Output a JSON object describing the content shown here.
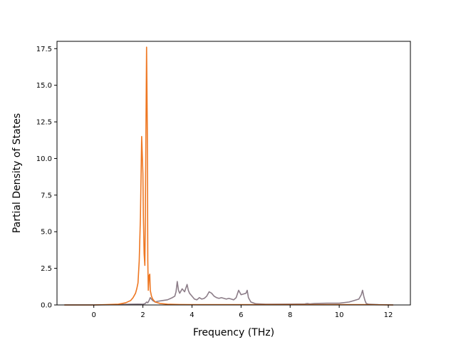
{
  "chart_data": {
    "type": "line",
    "title": "",
    "xlabel": "Frequency (THz)",
    "ylabel": "Partial Density of States",
    "xlim": [
      -1.5,
      12.9
    ],
    "ylim": [
      0,
      18.0
    ],
    "xticks": [
      0,
      2,
      4,
      6,
      8,
      10,
      12
    ],
    "xtick_labels": [
      "0",
      "2",
      "4",
      "6",
      "8",
      "10",
      "12"
    ],
    "yticks": [
      0.0,
      2.5,
      5.0,
      7.5,
      10.0,
      12.5,
      15.0,
      17.5
    ],
    "ytick_labels": [
      "0.0",
      "2.5",
      "5.0",
      "7.5",
      "10.0",
      "12.5",
      "15.0",
      "17.5"
    ],
    "grid": false,
    "legend": "none",
    "series": [
      {
        "color": "#8c7d88",
        "x": [
          -1.2,
          0.0,
          1.0,
          1.5,
          1.8,
          2.0,
          2.1,
          2.15,
          2.2,
          2.25,
          2.3,
          2.4,
          2.5,
          2.6,
          2.8,
          3.0,
          3.2,
          3.3,
          3.35,
          3.4,
          3.45,
          3.5,
          3.6,
          3.7,
          3.8,
          3.85,
          3.9,
          4.0,
          4.1,
          4.2,
          4.3,
          4.4,
          4.5,
          4.6,
          4.7,
          4.8,
          4.9,
          5.0,
          5.1,
          5.2,
          5.3,
          5.4,
          5.5,
          5.6,
          5.7,
          5.8,
          5.9,
          6.0,
          6.1,
          6.2,
          6.25,
          6.3,
          6.4,
          6.6,
          7.0,
          8.0,
          8.6,
          8.7,
          8.8,
          9.0,
          9.5,
          10.0,
          10.4,
          10.6,
          10.8,
          10.9,
          10.95,
          11.0,
          11.05,
          11.1,
          11.2,
          11.6,
          12.2
        ],
        "y": [
          0.0,
          0.0,
          0.02,
          0.05,
          0.06,
          0.05,
          0.1,
          0.2,
          0.15,
          0.3,
          0.5,
          0.3,
          0.2,
          0.25,
          0.3,
          0.35,
          0.5,
          0.6,
          0.9,
          1.6,
          1.0,
          0.8,
          1.1,
          0.9,
          1.4,
          1.0,
          0.8,
          0.6,
          0.4,
          0.35,
          0.5,
          0.4,
          0.45,
          0.6,
          0.9,
          0.8,
          0.6,
          0.5,
          0.45,
          0.5,
          0.45,
          0.4,
          0.45,
          0.4,
          0.35,
          0.5,
          1.0,
          0.7,
          0.75,
          0.8,
          1.0,
          0.5,
          0.2,
          0.08,
          0.05,
          0.06,
          0.07,
          0.1,
          0.07,
          0.1,
          0.12,
          0.12,
          0.2,
          0.3,
          0.4,
          0.7,
          1.0,
          0.6,
          0.3,
          0.1,
          0.05,
          0.02,
          0.0
        ]
      },
      {
        "color": "#ee7722",
        "x": [
          -1.2,
          0.0,
          0.5,
          1.0,
          1.3,
          1.5,
          1.6,
          1.7,
          1.75,
          1.8,
          1.85,
          1.9,
          1.95,
          2.0,
          2.02,
          2.05,
          2.08,
          2.1,
          2.12,
          2.15,
          2.18,
          2.2,
          2.22,
          2.25,
          2.28,
          2.3,
          2.35,
          2.4,
          2.5,
          2.7,
          3.0,
          3.5,
          4.0,
          5.0,
          6.0,
          7.0,
          8.0,
          9.0,
          10.0,
          11.0,
          12.2
        ],
        "y": [
          0.0,
          0.0,
          0.02,
          0.05,
          0.15,
          0.3,
          0.5,
          0.8,
          1.1,
          1.5,
          3.0,
          6.0,
          11.5,
          9.0,
          6.0,
          3.5,
          2.7,
          6.0,
          11.0,
          17.6,
          12.0,
          3.0,
          1.0,
          2.0,
          2.1,
          1.0,
          0.6,
          0.4,
          0.2,
          0.1,
          0.05,
          0.03,
          0.02,
          0.02,
          0.02,
          0.02,
          0.02,
          0.02,
          0.02,
          0.02,
          0.0
        ]
      }
    ]
  }
}
